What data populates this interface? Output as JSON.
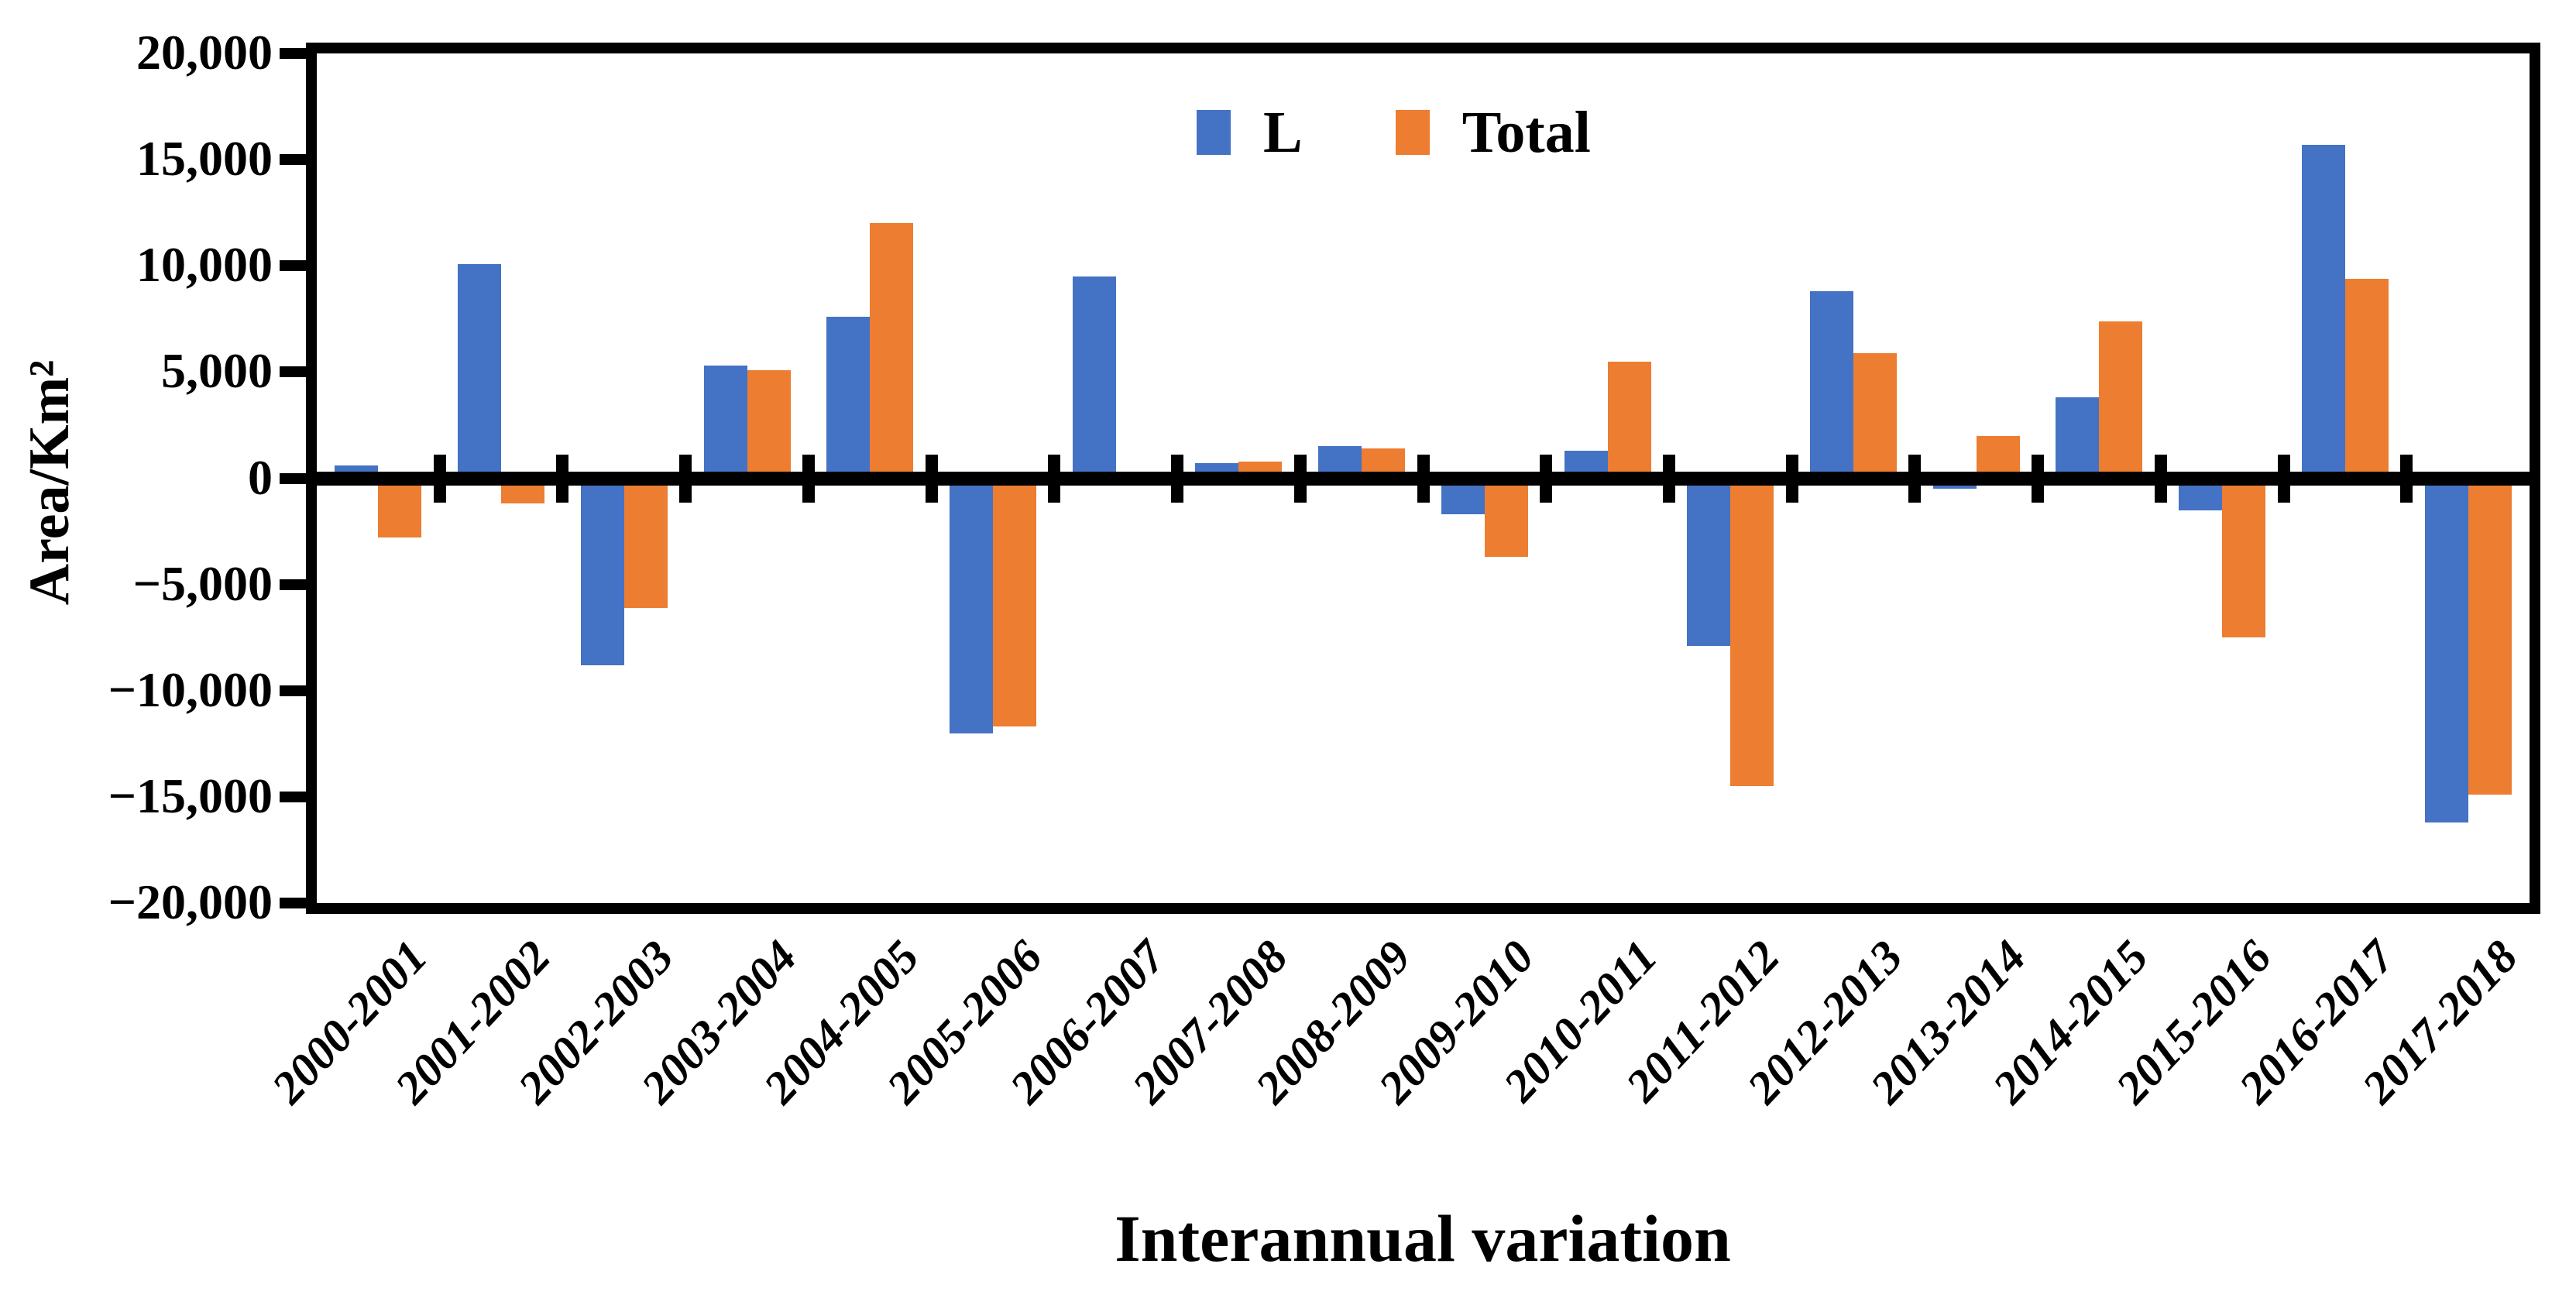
{
  "figure": {
    "y_axis": {
      "title": "Area/Km²",
      "tick_labels": [
        "20,000",
        "15,000",
        "10,000",
        "5,000",
        "0",
        "−5,000",
        "−10,000",
        "−15,000",
        "−20,000"
      ]
    },
    "x_axis": {
      "title": "Interannual variation"
    },
    "legend": {
      "items": [
        "L",
        "Total"
      ]
    },
    "colors": {
      "series_L": "#4472C4",
      "series_Total": "#ED7D31",
      "axis": "#000000",
      "background": "#FFFFFF"
    }
  },
  "chart_data": {
    "type": "bar",
    "title": "",
    "xlabel": "Interannual variation",
    "ylabel": "Area/Km²",
    "ylim": [
      -20000,
      20000
    ],
    "ytick_step": 5000,
    "ytick_labels": [
      "20,000",
      "15,000",
      "10,000",
      "5,000",
      "0",
      "−5,000",
      "−10,000",
      "−15,000",
      "−20,000"
    ],
    "grid": false,
    "legend_position": "top-center-inside",
    "categories": [
      "2000-2001",
      "2001-2002",
      "2002-2003",
      "2003-2004",
      "2004-2005",
      "2005-2006",
      "2006-2007",
      "2007-2008",
      "2008-2009",
      "2009-2010",
      "2010-2011",
      "2011-2012",
      "2012-2013",
      "2013-2014",
      "2014-2015",
      "2015-2016",
      "2016-2017",
      "2017-2018"
    ],
    "series": [
      {
        "name": "L",
        "color": "#4472C4",
        "values": [
          600,
          10100,
          -8800,
          5300,
          7600,
          -12000,
          9500,
          700,
          1500,
          -1700,
          1300,
          -7900,
          8800,
          -500,
          3800,
          -1500,
          15700,
          -16200
        ]
      },
      {
        "name": "Total",
        "color": "#ED7D31",
        "values": [
          -2800,
          -1200,
          -6100,
          5100,
          12000,
          -11700,
          0,
          800,
          1400,
          -3700,
          5500,
          -14500,
          5900,
          2000,
          7400,
          -7500,
          9400,
          -14900
        ]
      }
    ]
  }
}
